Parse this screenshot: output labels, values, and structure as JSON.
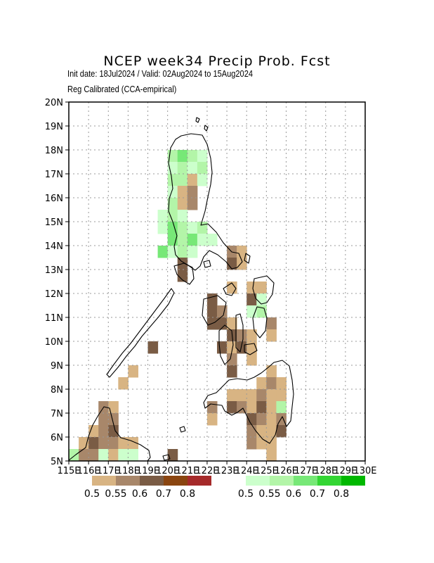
{
  "title": "NCEP week34 Precip Prob. Fcst",
  "subtitle_line1": "Init date: 18Jul2024 / Valid: 02Aug2024 to 15Aug2024",
  "subtitle_line2": "Reg Calibrated (CCA-empirical)",
  "colors": {
    "dry": [
      "#d8b483",
      "#a8876a",
      "#7a5c45",
      "#8a4510",
      "#a52a2a"
    ],
    "wet": [
      "#ccffcc",
      "#b3f5a8",
      "#77e877",
      "#33d633",
      "#00b800"
    ],
    "coast": "#000000",
    "grid": "#999999"
  },
  "map_data": {
    "type": "gridded-probability-map",
    "lon_range": [
      115,
      130
    ],
    "lat_range": [
      5,
      20
    ],
    "grid_spacing_deg": 0.5,
    "x_ticks": [
      "115E",
      "116E",
      "117E",
      "118E",
      "119E",
      "120E",
      "121E",
      "122E",
      "123E",
      "124E",
      "125E",
      "126E",
      "127E",
      "128E",
      "129E",
      "130E"
    ],
    "y_ticks": [
      "20N",
      "19N",
      "18N",
      "17N",
      "16N",
      "15N",
      "14N",
      "13N",
      "12N",
      "11N",
      "10N",
      "9N",
      "8N",
      "7N",
      "6N",
      "5N"
    ],
    "dry_legend": [
      "0.5",
      "0.55",
      "0.6",
      "0.7",
      "0.8"
    ],
    "wet_legend": [
      "0.5",
      "0.55",
      "0.6",
      "0.7",
      "0.8"
    ],
    "cells": [
      {
        "lon": 120.25,
        "lat": 17.75,
        "cat": "wet",
        "level": 1
      },
      {
        "lon": 120.75,
        "lat": 17.75,
        "cat": "wet",
        "level": 2
      },
      {
        "lon": 121.25,
        "lat": 17.75,
        "cat": "wet",
        "level": 1
      },
      {
        "lon": 121.75,
        "lat": 17.75,
        "cat": "wet",
        "level": 0
      },
      {
        "lon": 120.25,
        "lat": 17.25,
        "cat": "wet",
        "level": 0
      },
      {
        "lon": 120.75,
        "lat": 17.25,
        "cat": "wet",
        "level": 1
      },
      {
        "lon": 121.25,
        "lat": 17.25,
        "cat": "wet",
        "level": 0
      },
      {
        "lon": 121.75,
        "lat": 17.25,
        "cat": "wet",
        "level": 1
      },
      {
        "lon": 120.25,
        "lat": 16.75,
        "cat": "wet",
        "level": 1
      },
      {
        "lon": 120.75,
        "lat": 16.75,
        "cat": "wet",
        "level": 1
      },
      {
        "lon": 121.25,
        "lat": 16.75,
        "cat": "dry",
        "level": 0
      },
      {
        "lon": 121.75,
        "lat": 16.75,
        "cat": "wet",
        "level": 0
      },
      {
        "lon": 120.25,
        "lat": 16.25,
        "cat": "wet",
        "level": 0
      },
      {
        "lon": 120.75,
        "lat": 16.25,
        "cat": "dry",
        "level": 0
      },
      {
        "lon": 121.25,
        "lat": 16.25,
        "cat": "dry",
        "level": 1
      },
      {
        "lon": 120.25,
        "lat": 15.75,
        "cat": "wet",
        "level": 1
      },
      {
        "lon": 120.75,
        "lat": 15.75,
        "cat": "dry",
        "level": 0
      },
      {
        "lon": 121.25,
        "lat": 15.75,
        "cat": "dry",
        "level": 1
      },
      {
        "lon": 119.75,
        "lat": 15.25,
        "cat": "wet",
        "level": 0
      },
      {
        "lon": 120.25,
        "lat": 15.25,
        "cat": "wet",
        "level": 1
      },
      {
        "lon": 120.75,
        "lat": 15.25,
        "cat": "wet",
        "level": 0
      },
      {
        "lon": 119.75,
        "lat": 14.75,
        "cat": "wet",
        "level": 0
      },
      {
        "lon": 120.25,
        "lat": 14.75,
        "cat": "wet",
        "level": 2
      },
      {
        "lon": 120.75,
        "lat": 14.75,
        "cat": "wet",
        "level": 1
      },
      {
        "lon": 121.25,
        "lat": 14.75,
        "cat": "wet",
        "level": 0
      },
      {
        "lon": 121.75,
        "lat": 14.75,
        "cat": "wet",
        "level": 1
      },
      {
        "lon": 120.25,
        "lat": 14.25,
        "cat": "wet",
        "level": 2
      },
      {
        "lon": 120.75,
        "lat": 14.25,
        "cat": "wet",
        "level": 1
      },
      {
        "lon": 121.25,
        "lat": 14.25,
        "cat": "wet",
        "level": 2
      },
      {
        "lon": 121.75,
        "lat": 14.25,
        "cat": "wet",
        "level": 0
      },
      {
        "lon": 122.25,
        "lat": 14.25,
        "cat": "wet",
        "level": 0
      },
      {
        "lon": 119.75,
        "lat": 13.75,
        "cat": "wet",
        "level": 2
      },
      {
        "lon": 120.25,
        "lat": 13.75,
        "cat": "wet",
        "level": 0
      },
      {
        "lon": 120.75,
        "lat": 13.75,
        "cat": "wet",
        "level": 1
      },
      {
        "lon": 121.25,
        "lat": 13.75,
        "cat": "wet",
        "level": 0
      },
      {
        "lon": 120.75,
        "lat": 13.25,
        "cat": "dry",
        "level": 2
      },
      {
        "lon": 120.75,
        "lat": 12.75,
        "cat": "dry",
        "level": 2
      },
      {
        "lon": 123.25,
        "lat": 13.75,
        "cat": "dry",
        "level": 1
      },
      {
        "lon": 123.75,
        "lat": 13.75,
        "cat": "dry",
        "level": 0
      },
      {
        "lon": 123.25,
        "lat": 13.25,
        "cat": "dry",
        "level": 2
      },
      {
        "lon": 123.75,
        "lat": 13.25,
        "cat": "dry",
        "level": 0
      },
      {
        "lon": 123.25,
        "lat": 12.25,
        "cat": "dry",
        "level": 0
      },
      {
        "lon": 124.25,
        "lat": 12.25,
        "cat": "dry",
        "level": 0
      },
      {
        "lon": 124.75,
        "lat": 12.25,
        "cat": "dry",
        "level": 0
      },
      {
        "lon": 124.25,
        "lat": 11.75,
        "cat": "dry",
        "level": 2
      },
      {
        "lon": 124.75,
        "lat": 11.75,
        "cat": "wet",
        "level": 0
      },
      {
        "lon": 124.75,
        "lat": 11.25,
        "cat": "wet",
        "level": 1
      },
      {
        "lon": 124.25,
        "lat": 11.25,
        "cat": "wet",
        "level": 0
      },
      {
        "lon": 122.25,
        "lat": 11.75,
        "cat": "dry",
        "level": 2
      },
      {
        "lon": 122.25,
        "lat": 11.25,
        "cat": "dry",
        "level": 2
      },
      {
        "lon": 122.75,
        "lat": 11.25,
        "cat": "dry",
        "level": 1
      },
      {
        "lon": 122.25,
        "lat": 10.75,
        "cat": "dry",
        "level": 2
      },
      {
        "lon": 122.75,
        "lat": 10.75,
        "cat": "dry",
        "level": 2
      },
      {
        "lon": 123.25,
        "lat": 10.75,
        "cat": "dry",
        "level": 0
      },
      {
        "lon": 123.25,
        "lat": 10.25,
        "cat": "dry",
        "level": 2
      },
      {
        "lon": 123.75,
        "lat": 10.25,
        "cat": "dry",
        "level": 1
      },
      {
        "lon": 124.25,
        "lat": 10.25,
        "cat": "dry",
        "level": 0
      },
      {
        "lon": 125.25,
        "lat": 10.75,
        "cat": "dry",
        "level": 1
      },
      {
        "lon": 125.25,
        "lat": 10.25,
        "cat": "dry",
        "level": 0
      },
      {
        "lon": 122.75,
        "lat": 9.75,
        "cat": "dry",
        "level": 2
      },
      {
        "lon": 123.25,
        "lat": 9.75,
        "cat": "dry",
        "level": 0
      },
      {
        "lon": 123.75,
        "lat": 9.75,
        "cat": "dry",
        "level": 2
      },
      {
        "lon": 124.25,
        "lat": 9.75,
        "cat": "dry",
        "level": 0
      },
      {
        "lon": 123.25,
        "lat": 9.25,
        "cat": "dry",
        "level": 1
      },
      {
        "lon": 124.25,
        "lat": 9.25,
        "cat": "dry",
        "level": 0
      },
      {
        "lon": 123.25,
        "lat": 8.75,
        "cat": "dry",
        "level": 2
      },
      {
        "lon": 125.25,
        "lat": 8.75,
        "cat": "dry",
        "level": 0
      },
      {
        "lon": 124.75,
        "lat": 8.25,
        "cat": "dry",
        "level": 0
      },
      {
        "lon": 125.25,
        "lat": 8.25,
        "cat": "dry",
        "level": 1
      },
      {
        "lon": 125.75,
        "lat": 8.25,
        "cat": "dry",
        "level": 0
      },
      {
        "lon": 123.25,
        "lat": 7.75,
        "cat": "dry",
        "level": 0
      },
      {
        "lon": 123.75,
        "lat": 7.75,
        "cat": "dry",
        "level": 0
      },
      {
        "lon": 124.25,
        "lat": 7.75,
        "cat": "dry",
        "level": 0
      },
      {
        "lon": 124.75,
        "lat": 7.75,
        "cat": "dry",
        "level": 1
      },
      {
        "lon": 125.25,
        "lat": 7.75,
        "cat": "dry",
        "level": 0
      },
      {
        "lon": 125.75,
        "lat": 7.75,
        "cat": "dry",
        "level": 0
      },
      {
        "lon": 122.25,
        "lat": 7.25,
        "cat": "dry",
        "level": 1
      },
      {
        "lon": 123.25,
        "lat": 7.25,
        "cat": "dry",
        "level": 2
      },
      {
        "lon": 123.75,
        "lat": 7.25,
        "cat": "dry",
        "level": 1
      },
      {
        "lon": 124.25,
        "lat": 7.25,
        "cat": "dry",
        "level": 0
      },
      {
        "lon": 124.75,
        "lat": 7.25,
        "cat": "dry",
        "level": 2
      },
      {
        "lon": 125.25,
        "lat": 7.25,
        "cat": "dry",
        "level": 0
      },
      {
        "lon": 125.75,
        "lat": 7.25,
        "cat": "wet",
        "level": 1
      },
      {
        "lon": 122.25,
        "lat": 6.75,
        "cat": "dry",
        "level": 0
      },
      {
        "lon": 124.25,
        "lat": 6.75,
        "cat": "dry",
        "level": 2
      },
      {
        "lon": 124.75,
        "lat": 6.75,
        "cat": "dry",
        "level": 1
      },
      {
        "lon": 125.25,
        "lat": 6.75,
        "cat": "dry",
        "level": 0
      },
      {
        "lon": 125.75,
        "lat": 6.75,
        "cat": "dry",
        "level": 1
      },
      {
        "lon": 124.25,
        "lat": 6.25,
        "cat": "dry",
        "level": 1
      },
      {
        "lon": 124.75,
        "lat": 6.25,
        "cat": "dry",
        "level": 0
      },
      {
        "lon": 125.25,
        "lat": 6.25,
        "cat": "dry",
        "level": 0
      },
      {
        "lon": 125.75,
        "lat": 6.25,
        "cat": "dry",
        "level": 2
      },
      {
        "lon": 124.25,
        "lat": 5.75,
        "cat": "dry",
        "level": 1
      },
      {
        "lon": 124.75,
        "lat": 5.75,
        "cat": "dry",
        "level": 0
      },
      {
        "lon": 125.25,
        "lat": 5.75,
        "cat": "dry",
        "level": 0
      },
      {
        "lon": 125.25,
        "lat": 5.25,
        "cat": "dry",
        "level": 0
      },
      {
        "lon": 119.25,
        "lat": 9.75,
        "cat": "dry",
        "level": 2
      },
      {
        "lon": 118.25,
        "lat": 8.75,
        "cat": "dry",
        "level": 0
      },
      {
        "lon": 117.75,
        "lat": 8.25,
        "cat": "dry",
        "level": 0
      },
      {
        "lon": 116.75,
        "lat": 7.25,
        "cat": "dry",
        "level": 1
      },
      {
        "lon": 117.25,
        "lat": 7.25,
        "cat": "dry",
        "level": 0
      },
      {
        "lon": 116.75,
        "lat": 6.75,
        "cat": "dry",
        "level": 1
      },
      {
        "lon": 117.25,
        "lat": 6.75,
        "cat": "dry",
        "level": 1
      },
      {
        "lon": 116.25,
        "lat": 6.25,
        "cat": "dry",
        "level": 0
      },
      {
        "lon": 116.75,
        "lat": 6.25,
        "cat": "dry",
        "level": 1
      },
      {
        "lon": 117.25,
        "lat": 6.25,
        "cat": "dry",
        "level": 2
      },
      {
        "lon": 115.75,
        "lat": 5.75,
        "cat": "dry",
        "level": 0
      },
      {
        "lon": 116.25,
        "lat": 5.75,
        "cat": "dry",
        "level": 2
      },
      {
        "lon": 116.75,
        "lat": 5.75,
        "cat": "dry",
        "level": 1
      },
      {
        "lon": 117.25,
        "lat": 5.75,
        "cat": "dry",
        "level": 1
      },
      {
        "lon": 117.75,
        "lat": 5.75,
        "cat": "dry",
        "level": 0
      },
      {
        "lon": 118.25,
        "lat": 5.75,
        "cat": "dry",
        "level": 0
      },
      {
        "lon": 115.25,
        "lat": 5.25,
        "cat": "wet",
        "level": 1
      },
      {
        "lon": 115.75,
        "lat": 5.25,
        "cat": "dry",
        "level": 1
      },
      {
        "lon": 116.25,
        "lat": 5.25,
        "cat": "dry",
        "level": 1
      },
      {
        "lon": 116.75,
        "lat": 5.25,
        "cat": "wet",
        "level": 0
      },
      {
        "lon": 117.25,
        "lat": 5.25,
        "cat": "dry",
        "level": 0
      },
      {
        "lon": 117.75,
        "lat": 5.25,
        "cat": "wet",
        "level": 0
      },
      {
        "lon": 118.25,
        "lat": 5.25,
        "cat": "wet",
        "level": 0
      },
      {
        "lon": 120.25,
        "lat": 5.25,
        "cat": "dry",
        "level": 2
      }
    ]
  }
}
